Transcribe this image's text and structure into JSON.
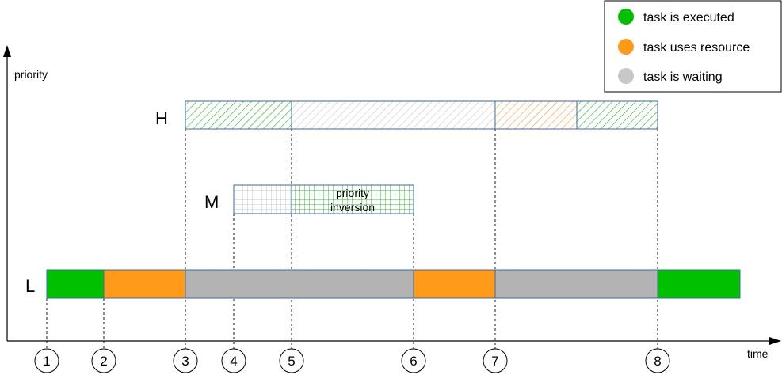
{
  "axes": {
    "y_label": "priority",
    "x_label": "time"
  },
  "tasks": [
    {
      "id": "H",
      "label": "H"
    },
    {
      "id": "M",
      "label": "M"
    },
    {
      "id": "L",
      "label": "L"
    }
  ],
  "annotation": {
    "line1": "priority",
    "line2": "inversion"
  },
  "markers": [
    "1",
    "2",
    "3",
    "4",
    "5",
    "6",
    "7",
    "8"
  ],
  "legend": [
    {
      "label": "task is executed",
      "color": "#00c000"
    },
    {
      "label": "task uses resource",
      "color": "#ff9a1a"
    },
    {
      "label": "task is waiting",
      "color": "#c8c8c8"
    }
  ],
  "colors": {
    "executed": "#00c000",
    "resource": "#ff9a1a",
    "waiting": "#b3b3b3",
    "outline": "#3a6ea5"
  }
}
